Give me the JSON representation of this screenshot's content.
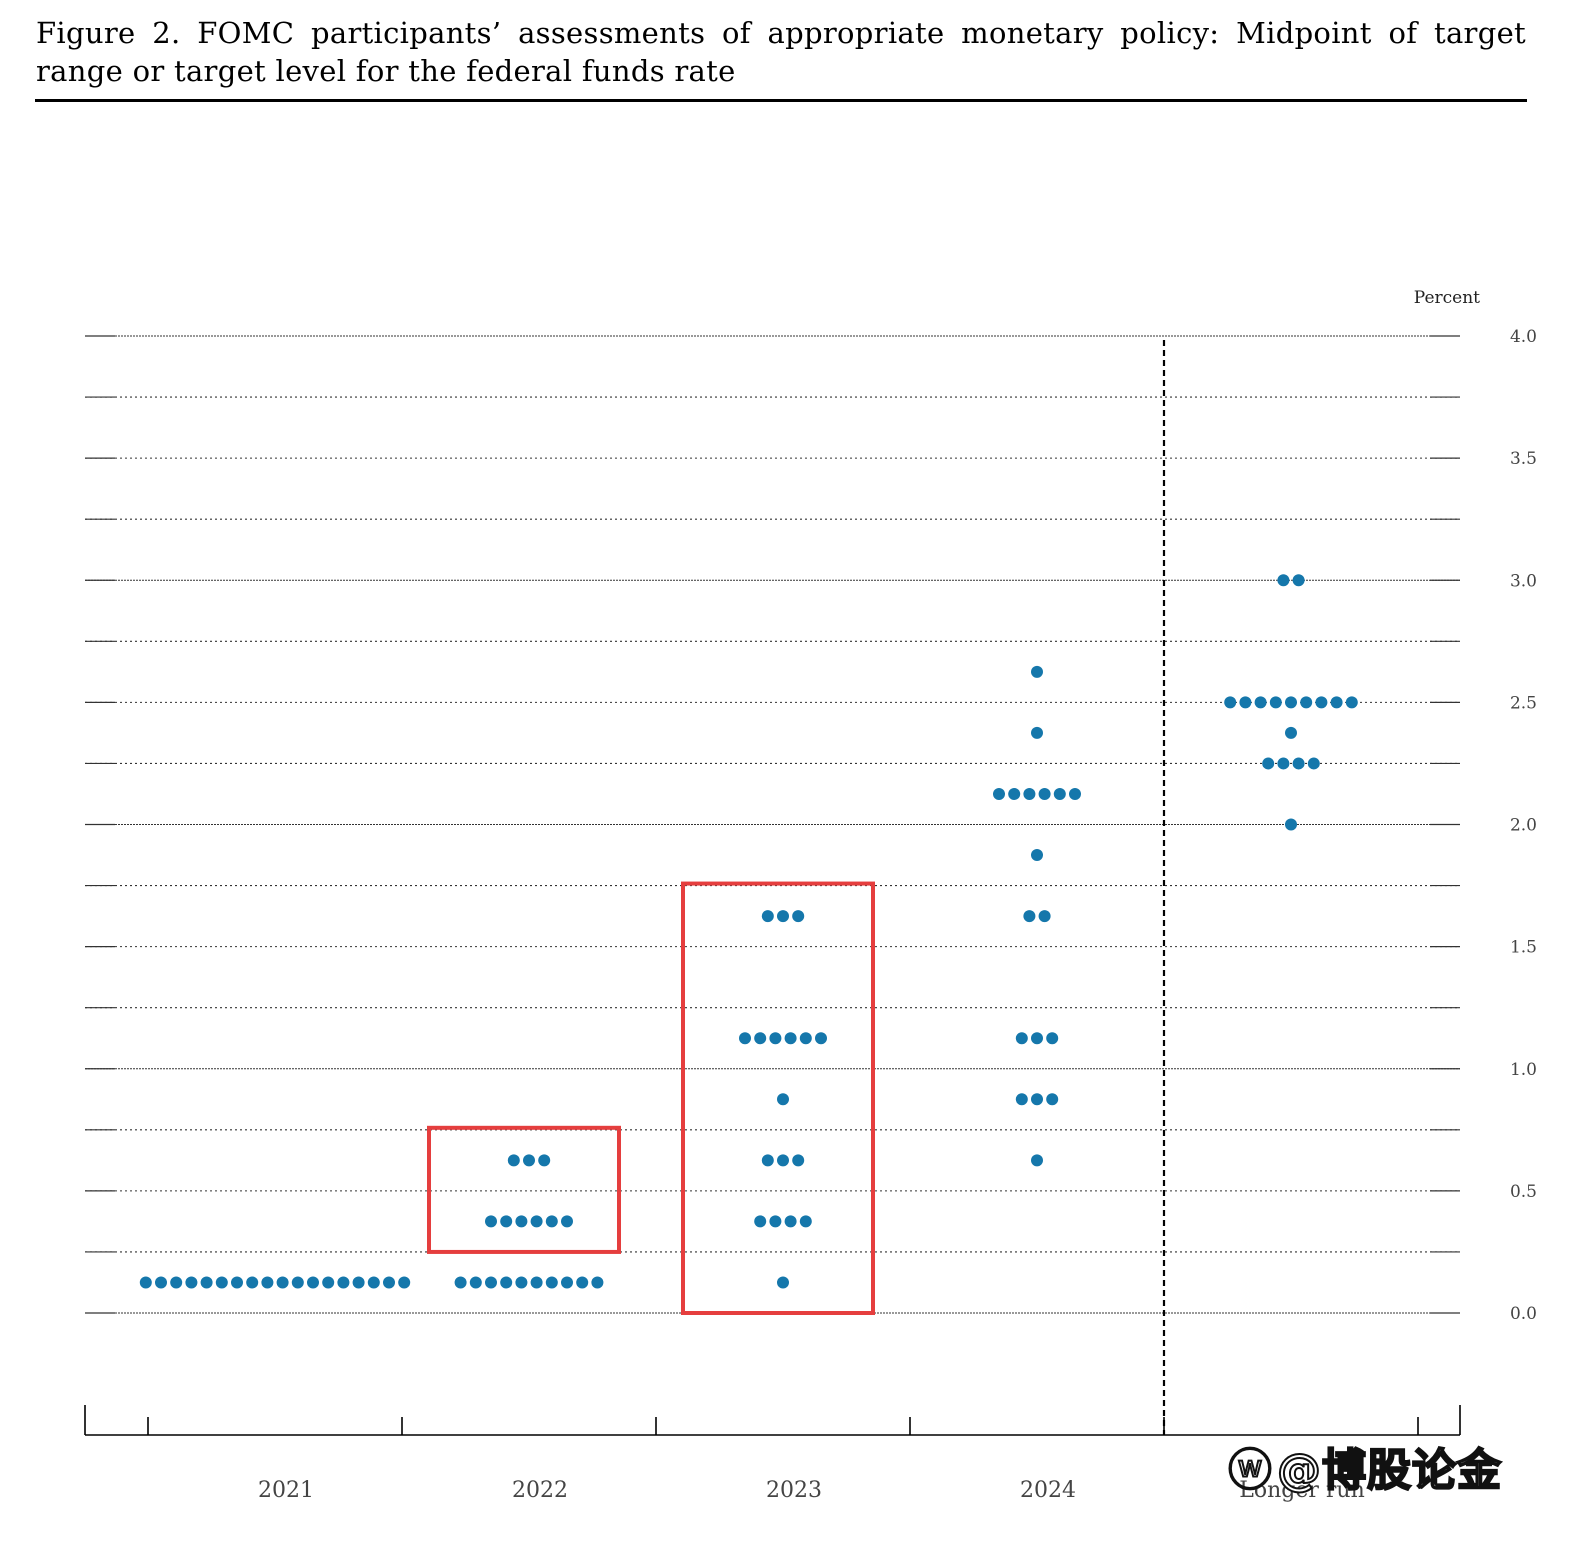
{
  "figure": {
    "title": "Figure 2.  FOMC participants’ assessments of appropriate monetary policy:  Midpoint of target range or target level for the federal funds rate"
  },
  "chart_data": {
    "type": "scatter",
    "subtype": "dot-plot",
    "ylabel": "Percent",
    "ylim": [
      0,
      4
    ],
    "y_ticks": [
      "0.0",
      "0.5",
      "1.0",
      "1.5",
      "2.0",
      "2.5",
      "3.0",
      "3.5",
      "4.0"
    ],
    "y_minor_step": 0.25,
    "categories": [
      "2021",
      "2022",
      "2023",
      "2024",
      "Longer run"
    ],
    "x_tick_labels": [
      "2021",
      "2022",
      "2023",
      "2024",
      "Longer run"
    ],
    "separator_after": "2024",
    "dot_color": "#1577ab",
    "series": [
      {
        "category": "2021",
        "points": [
          {
            "y": 0.125,
            "count": 18
          }
        ]
      },
      {
        "category": "2022",
        "points": [
          {
            "y": 0.125,
            "count": 10
          },
          {
            "y": 0.375,
            "count": 6
          },
          {
            "y": 0.625,
            "count": 3
          }
        ]
      },
      {
        "category": "2023",
        "points": [
          {
            "y": 0.125,
            "count": 1
          },
          {
            "y": 0.375,
            "count": 4
          },
          {
            "y": 0.625,
            "count": 3
          },
          {
            "y": 0.875,
            "count": 1
          },
          {
            "y": 1.125,
            "count": 6
          },
          {
            "y": 1.625,
            "count": 3
          }
        ]
      },
      {
        "category": "2024",
        "points": [
          {
            "y": 0.625,
            "count": 1
          },
          {
            "y": 0.875,
            "count": 3
          },
          {
            "y": 1.125,
            "count": 3
          },
          {
            "y": 1.625,
            "count": 2
          },
          {
            "y": 1.875,
            "count": 1
          },
          {
            "y": 2.125,
            "count": 6
          },
          {
            "y": 2.375,
            "count": 1
          },
          {
            "y": 2.625,
            "count": 1
          }
        ]
      },
      {
        "category": "Longer run",
        "points": [
          {
            "y": 2.0,
            "count": 1
          },
          {
            "y": 2.25,
            "count": 4
          },
          {
            "y": 2.375,
            "count": 1
          },
          {
            "y": 2.5,
            "count": 9
          },
          {
            "y": 3.0,
            "count": 2
          }
        ]
      }
    ],
    "highlight_boxes": [
      {
        "category": "2022",
        "y_range": [
          0.25,
          0.75
        ],
        "color": "#e53e3e"
      },
      {
        "category": "2023",
        "y_range": [
          0.0,
          1.75
        ],
        "color": "#e53e3e"
      }
    ],
    "grid": true
  },
  "watermark": {
    "logo_icon": "weibo-logo-icon",
    "text": "@博股论金"
  }
}
